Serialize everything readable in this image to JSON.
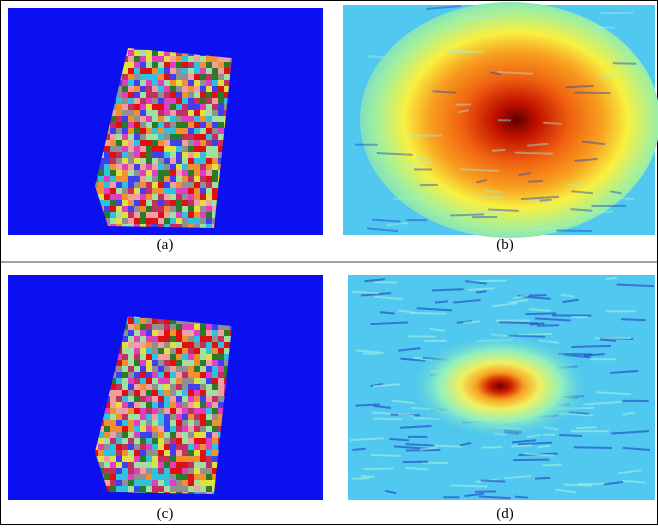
{
  "figure": {
    "captions": [
      "(a)",
      "(b)",
      "(c)",
      "(d)"
    ]
  }
}
